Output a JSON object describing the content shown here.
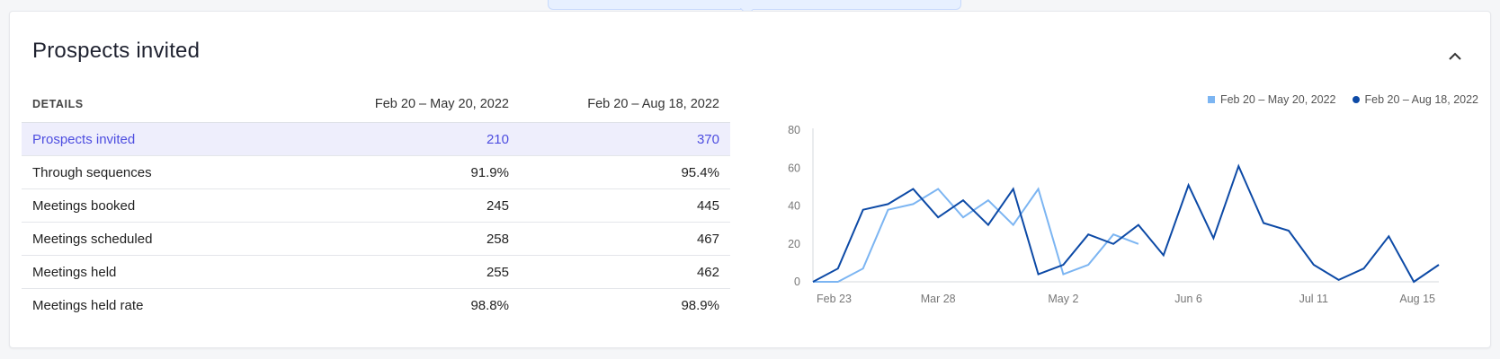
{
  "section": {
    "title": "Prospects invited",
    "collapse_icon": "chevron-up-icon"
  },
  "table": {
    "headers": [
      "DETAILS",
      "Feb 20 – May 20, 2022",
      "Feb 20 – Aug 18, 2022"
    ],
    "rows": [
      {
        "label": "Prospects invited",
        "a": "210",
        "b": "370",
        "highlighted": true
      },
      {
        "label": "Through sequences",
        "a": "91.9%",
        "b": "95.4%"
      },
      {
        "label": "Meetings booked",
        "a": "245",
        "b": "445"
      },
      {
        "label": "Meetings scheduled",
        "a": "258",
        "b": "467"
      },
      {
        "label": "Meetings held",
        "a": "255",
        "b": "462"
      },
      {
        "label": "Meetings held rate",
        "a": "98.8%",
        "b": "98.9%"
      }
    ]
  },
  "chart_data": {
    "type": "line",
    "legend_position": "top-right",
    "ylim": [
      0,
      80
    ],
    "yticks": [
      "0",
      "20",
      "40",
      "60",
      "80"
    ],
    "xtick_labels": [
      "Feb 23",
      "Mar 28",
      "May 2",
      "Jun 6",
      "Jul 11",
      "Aug 15"
    ],
    "series": [
      {
        "name": "Feb 20 – May 20, 2022",
        "color": "#7cb5f2",
        "marker": "square",
        "values": [
          0,
          0,
          7,
          38,
          41,
          49,
          34,
          43,
          30,
          49,
          4,
          9,
          25,
          20
        ]
      },
      {
        "name": "Feb 20 – Aug 18, 2022",
        "color": "#0d4aa6",
        "marker": "circle",
        "values": [
          0,
          7,
          38,
          41,
          49,
          34,
          43,
          30,
          49,
          4,
          9,
          25,
          20,
          30,
          14,
          51,
          23,
          61,
          31,
          27,
          9,
          1,
          7,
          24,
          0,
          9
        ]
      }
    ]
  }
}
